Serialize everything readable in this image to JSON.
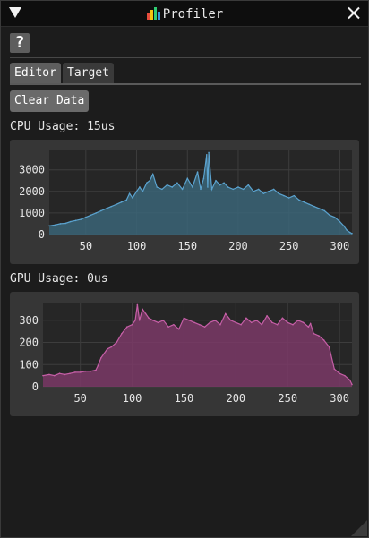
{
  "window": {
    "title": "Profiler",
    "logo_icon": "bar-chart-icon",
    "collapse_icon": "triangle-down-icon",
    "close_icon": "close-icon"
  },
  "toolbar": {
    "help_label": "?"
  },
  "tabs": [
    {
      "label": "Editor",
      "active": true
    },
    {
      "label": "Target",
      "active": false
    }
  ],
  "actions": {
    "clear_label": "Clear Data"
  },
  "cpu": {
    "label": "CPU Usage: 15us"
  },
  "gpu": {
    "label": "GPU Usage: 0us"
  },
  "colors": {
    "cpu_line": "#5ba3cf",
    "cpu_fill": "#3b6578",
    "gpu_line": "#c65fa7",
    "gpu_fill": "#7b3a67",
    "panel_bg": "#363636",
    "plot_bg": "#262626"
  },
  "chart_data": [
    {
      "type": "area",
      "title": "",
      "xlim": [
        14,
        312
      ],
      "ylim": [
        0,
        3900
      ],
      "xticks": [
        50,
        100,
        150,
        200,
        250,
        300
      ],
      "yticks": [
        0,
        1000,
        2000,
        3000
      ],
      "grid": true,
      "series": [
        {
          "x": [
            14,
            20,
            25,
            30,
            35,
            40,
            45,
            50,
            55,
            60,
            65,
            70,
            75,
            80,
            85,
            90,
            93,
            96,
            100,
            103,
            106,
            110,
            113,
            116,
            120,
            125,
            130,
            135,
            140,
            145,
            150,
            155,
            160,
            163,
            166,
            169,
            170,
            171,
            174,
            178,
            182,
            186,
            190,
            195,
            200,
            205,
            210,
            215,
            220,
            225,
            230,
            235,
            240,
            245,
            250,
            255,
            260,
            265,
            270,
            275,
            280,
            285,
            290,
            295,
            300,
            304,
            307,
            310,
            312
          ],
          "values": [
            400,
            450,
            500,
            520,
            600,
            650,
            700,
            800,
            900,
            1000,
            1100,
            1200,
            1300,
            1400,
            1500,
            1600,
            1900,
            1700,
            2000,
            2200,
            2000,
            2400,
            2500,
            2800,
            2200,
            2100,
            2300,
            2200,
            2400,
            2100,
            2600,
            2200,
            2900,
            2100,
            2600,
            3700,
            2200,
            3800,
            2100,
            2500,
            2300,
            2400,
            2200,
            2100,
            2200,
            2100,
            2300,
            2000,
            2100,
            1900,
            2000,
            2100,
            1900,
            1800,
            1700,
            1800,
            1600,
            1500,
            1400,
            1300,
            1200,
            1100,
            900,
            800,
            600,
            400,
            200,
            100,
            50
          ]
        }
      ]
    },
    {
      "type": "area",
      "title": "",
      "xlim": [
        14,
        312
      ],
      "ylim": [
        0,
        380
      ],
      "xticks": [
        50,
        100,
        150,
        200,
        250,
        300
      ],
      "yticks": [
        0,
        100,
        200,
        300
      ],
      "grid": true,
      "series": [
        {
          "x": [
            14,
            20,
            25,
            30,
            35,
            40,
            45,
            50,
            55,
            60,
            65,
            67,
            70,
            73,
            76,
            80,
            85,
            90,
            95,
            100,
            103,
            105,
            107,
            110,
            113,
            116,
            120,
            125,
            130,
            135,
            140,
            145,
            150,
            155,
            160,
            165,
            170,
            175,
            180,
            185,
            190,
            195,
            200,
            205,
            210,
            215,
            220,
            225,
            230,
            235,
            240,
            245,
            250,
            255,
            260,
            265,
            270,
            272,
            275,
            280,
            285,
            290,
            295,
            300,
            305,
            310,
            312
          ],
          "values": [
            50,
            55,
            50,
            60,
            55,
            60,
            65,
            65,
            70,
            70,
            75,
            95,
            130,
            150,
            170,
            180,
            200,
            240,
            270,
            280,
            300,
            370,
            300,
            350,
            330,
            310,
            300,
            290,
            300,
            270,
            280,
            260,
            310,
            300,
            290,
            280,
            270,
            290,
            300,
            280,
            330,
            300,
            290,
            280,
            310,
            290,
            300,
            280,
            320,
            290,
            280,
            310,
            290,
            280,
            300,
            290,
            270,
            285,
            240,
            230,
            210,
            180,
            80,
            60,
            50,
            30,
            10
          ]
        }
      ]
    }
  ]
}
